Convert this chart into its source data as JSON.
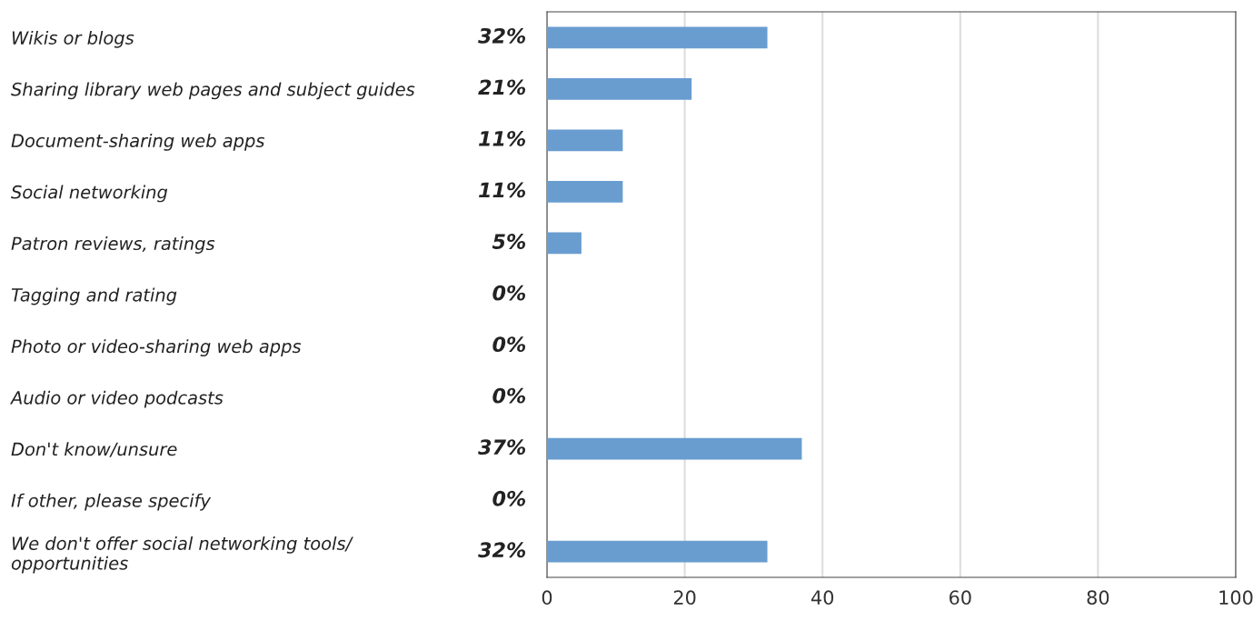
{
  "chart_data": {
    "type": "bar",
    "orientation": "horizontal",
    "categories": [
      "Wikis or blogs",
      "Sharing library web pages and subject guides",
      "Document-sharing web apps",
      "Social networking",
      "Patron reviews, ratings",
      "Tagging and rating",
      "Photo or video-sharing web apps",
      "Audio or video podcasts",
      "Don't know/unsure",
      "If other, please specify",
      "We don't offer social networking tools/\nopportunities"
    ],
    "values": [
      32,
      21,
      11,
      11,
      5,
      0,
      0,
      0,
      37,
      0,
      32
    ],
    "value_labels": [
      "32%",
      "21%",
      "11%",
      "11%",
      "5%",
      "0%",
      "0%",
      "0%",
      "37%",
      "0%",
      "32%"
    ],
    "color": "#699dd0",
    "xlim": [
      0,
      100
    ],
    "xticks": [
      0,
      20,
      40,
      60,
      80,
      100
    ],
    "grid": "x"
  }
}
